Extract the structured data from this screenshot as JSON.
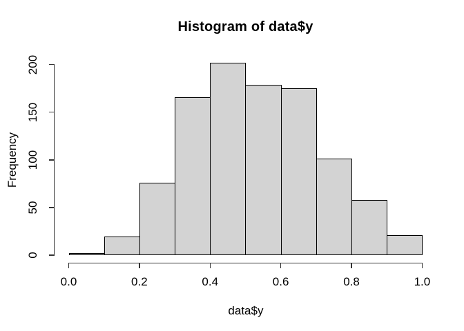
{
  "chart_data": {
    "type": "bar",
    "subtype": "histogram",
    "title": "Histogram of data$y",
    "xlabel": "data$y",
    "ylabel": "Frequency",
    "bin_edges": [
      0.0,
      0.1,
      0.2,
      0.3,
      0.4,
      0.5,
      0.6,
      0.7,
      0.8,
      0.9,
      1.0
    ],
    "values": [
      2,
      20,
      76,
      166,
      202,
      179,
      175,
      101,
      58,
      21
    ],
    "x_tick_values": [
      0.0,
      0.2,
      0.4,
      0.6,
      0.8,
      1.0
    ],
    "x_tick_labels": [
      "0.0",
      "0.2",
      "0.4",
      "0.6",
      "0.8",
      "1.0"
    ],
    "y_tick_values": [
      0,
      50,
      100,
      150,
      200
    ],
    "y_tick_labels": [
      "0",
      "50",
      "100",
      "150",
      "200"
    ],
    "xlim": [
      0.0,
      1.0
    ],
    "ylim": [
      0,
      202
    ],
    "grid": false,
    "legend": "none",
    "bar_fill": "#D3D3D3",
    "bar_border": "#000000",
    "axis_color": "#333333",
    "text_color": "#000000",
    "background": "#FFFFFF"
  }
}
